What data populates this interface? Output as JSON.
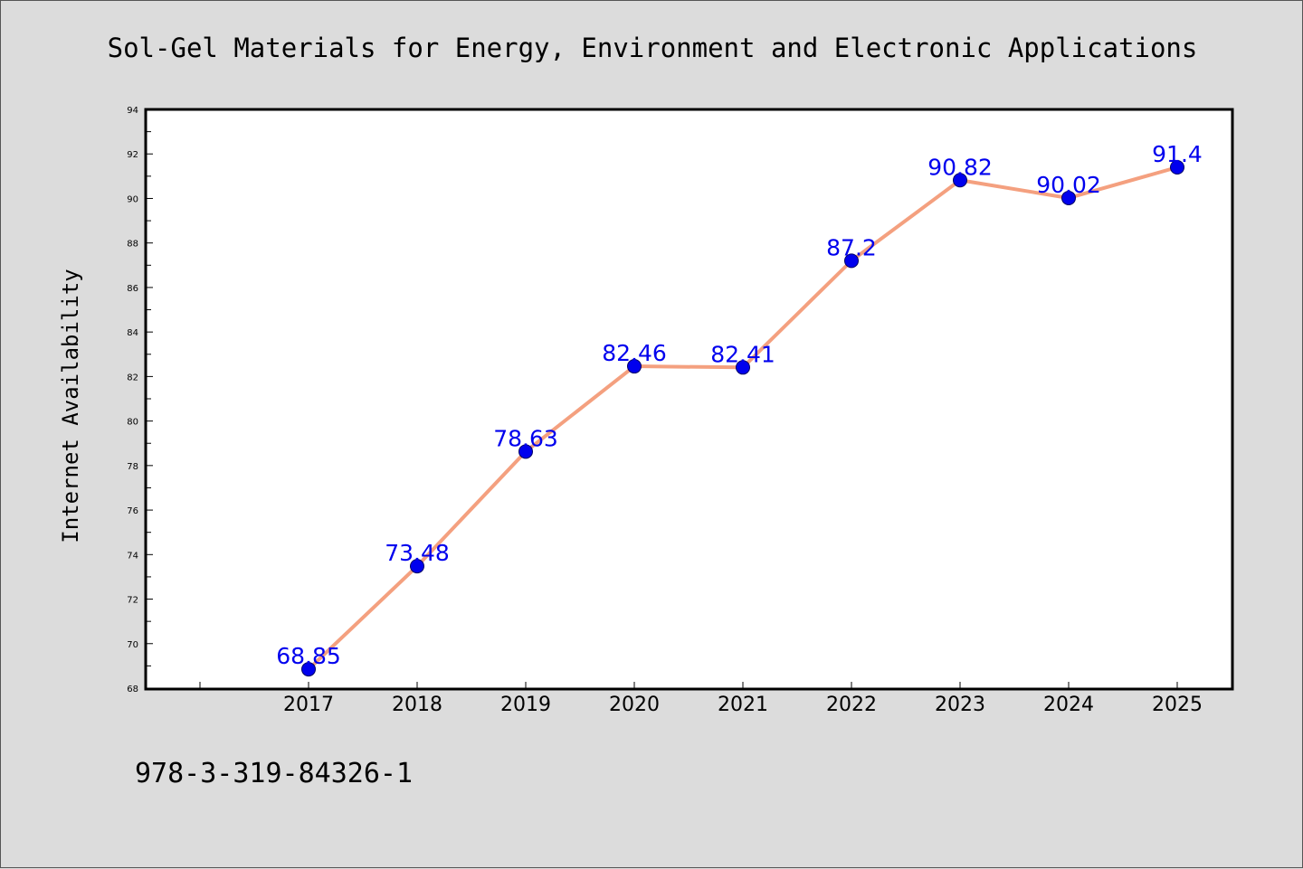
{
  "chart_data": {
    "type": "line",
    "title": "Sol-Gel Materials for Energy, Environment and Electronic Applications",
    "xlabel": "",
    "ylabel": "Internet Availability",
    "categories": [
      "2017",
      "2018",
      "2019",
      "2020",
      "2021",
      "2022",
      "2023",
      "2024",
      "2025"
    ],
    "series": [
      {
        "values": [
          68.85,
          73.48,
          78.63,
          82.46,
          82.41,
          87.2,
          90.82,
          90.02,
          91.4
        ],
        "data_labels": [
          "68.85",
          "73.48",
          "78.63",
          "82.46",
          "82.41",
          "87.2",
          "90.82",
          "90.02",
          "91.4"
        ]
      }
    ],
    "ylim": [
      68,
      94
    ],
    "yticks": [
      "68",
      "70",
      "72",
      "74",
      "76",
      "78",
      "80",
      "82",
      "84",
      "86",
      "88",
      "90",
      "92",
      "94"
    ],
    "xlim": [
      2016,
      2025
    ],
    "grid": false,
    "legend": "none",
    "line_color": "#f4a07f",
    "marker_color": "#0000ee",
    "label_color": "#0000ee"
  },
  "footer": {
    "isbn": "978-3-319-84326-1"
  }
}
